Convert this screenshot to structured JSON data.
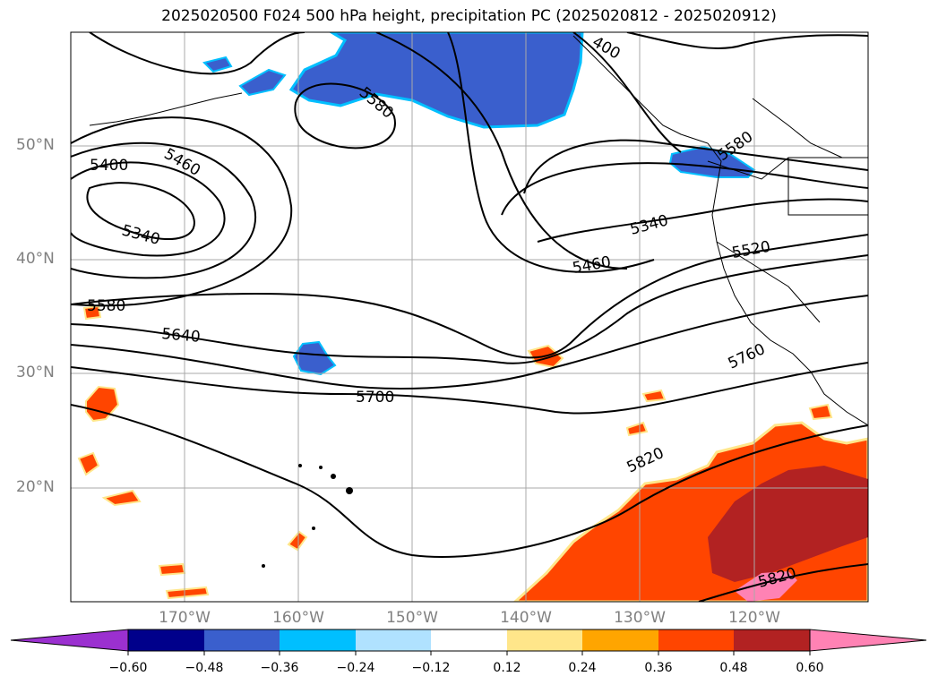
{
  "title": "2025020500 F024 500 hPa height, precipitation PC (2025020812 - 2025020912)",
  "lat_labels": [
    "50°N",
    "40°N",
    "30°N",
    "20°N"
  ],
  "lon_labels": [
    "170°W",
    "160°W",
    "150°W",
    "140°W",
    "130°W",
    "120°W"
  ],
  "contour_labels": [
    "5400",
    "5460",
    "5340",
    "5580",
    "5640",
    "5700",
    "5820",
    "5340",
    "5460",
    "5520",
    "5760",
    "5820",
    "5580",
    "5580",
    "400"
  ],
  "colorbar": {
    "ticks": [
      "−0.60",
      "−0.48",
      "−0.36",
      "−0.24",
      "−0.12",
      "0.12",
      "0.24",
      "0.36",
      "0.48",
      "0.60"
    ],
    "colors": [
      "#9b30d0",
      "#00008b",
      "#3a5fcd",
      "#00bfff",
      "#b0e2ff",
      "#ffffff",
      "#ffe68a",
      "#ffa500",
      "#ff4500",
      "#b22222",
      "#ff82b4"
    ]
  }
}
